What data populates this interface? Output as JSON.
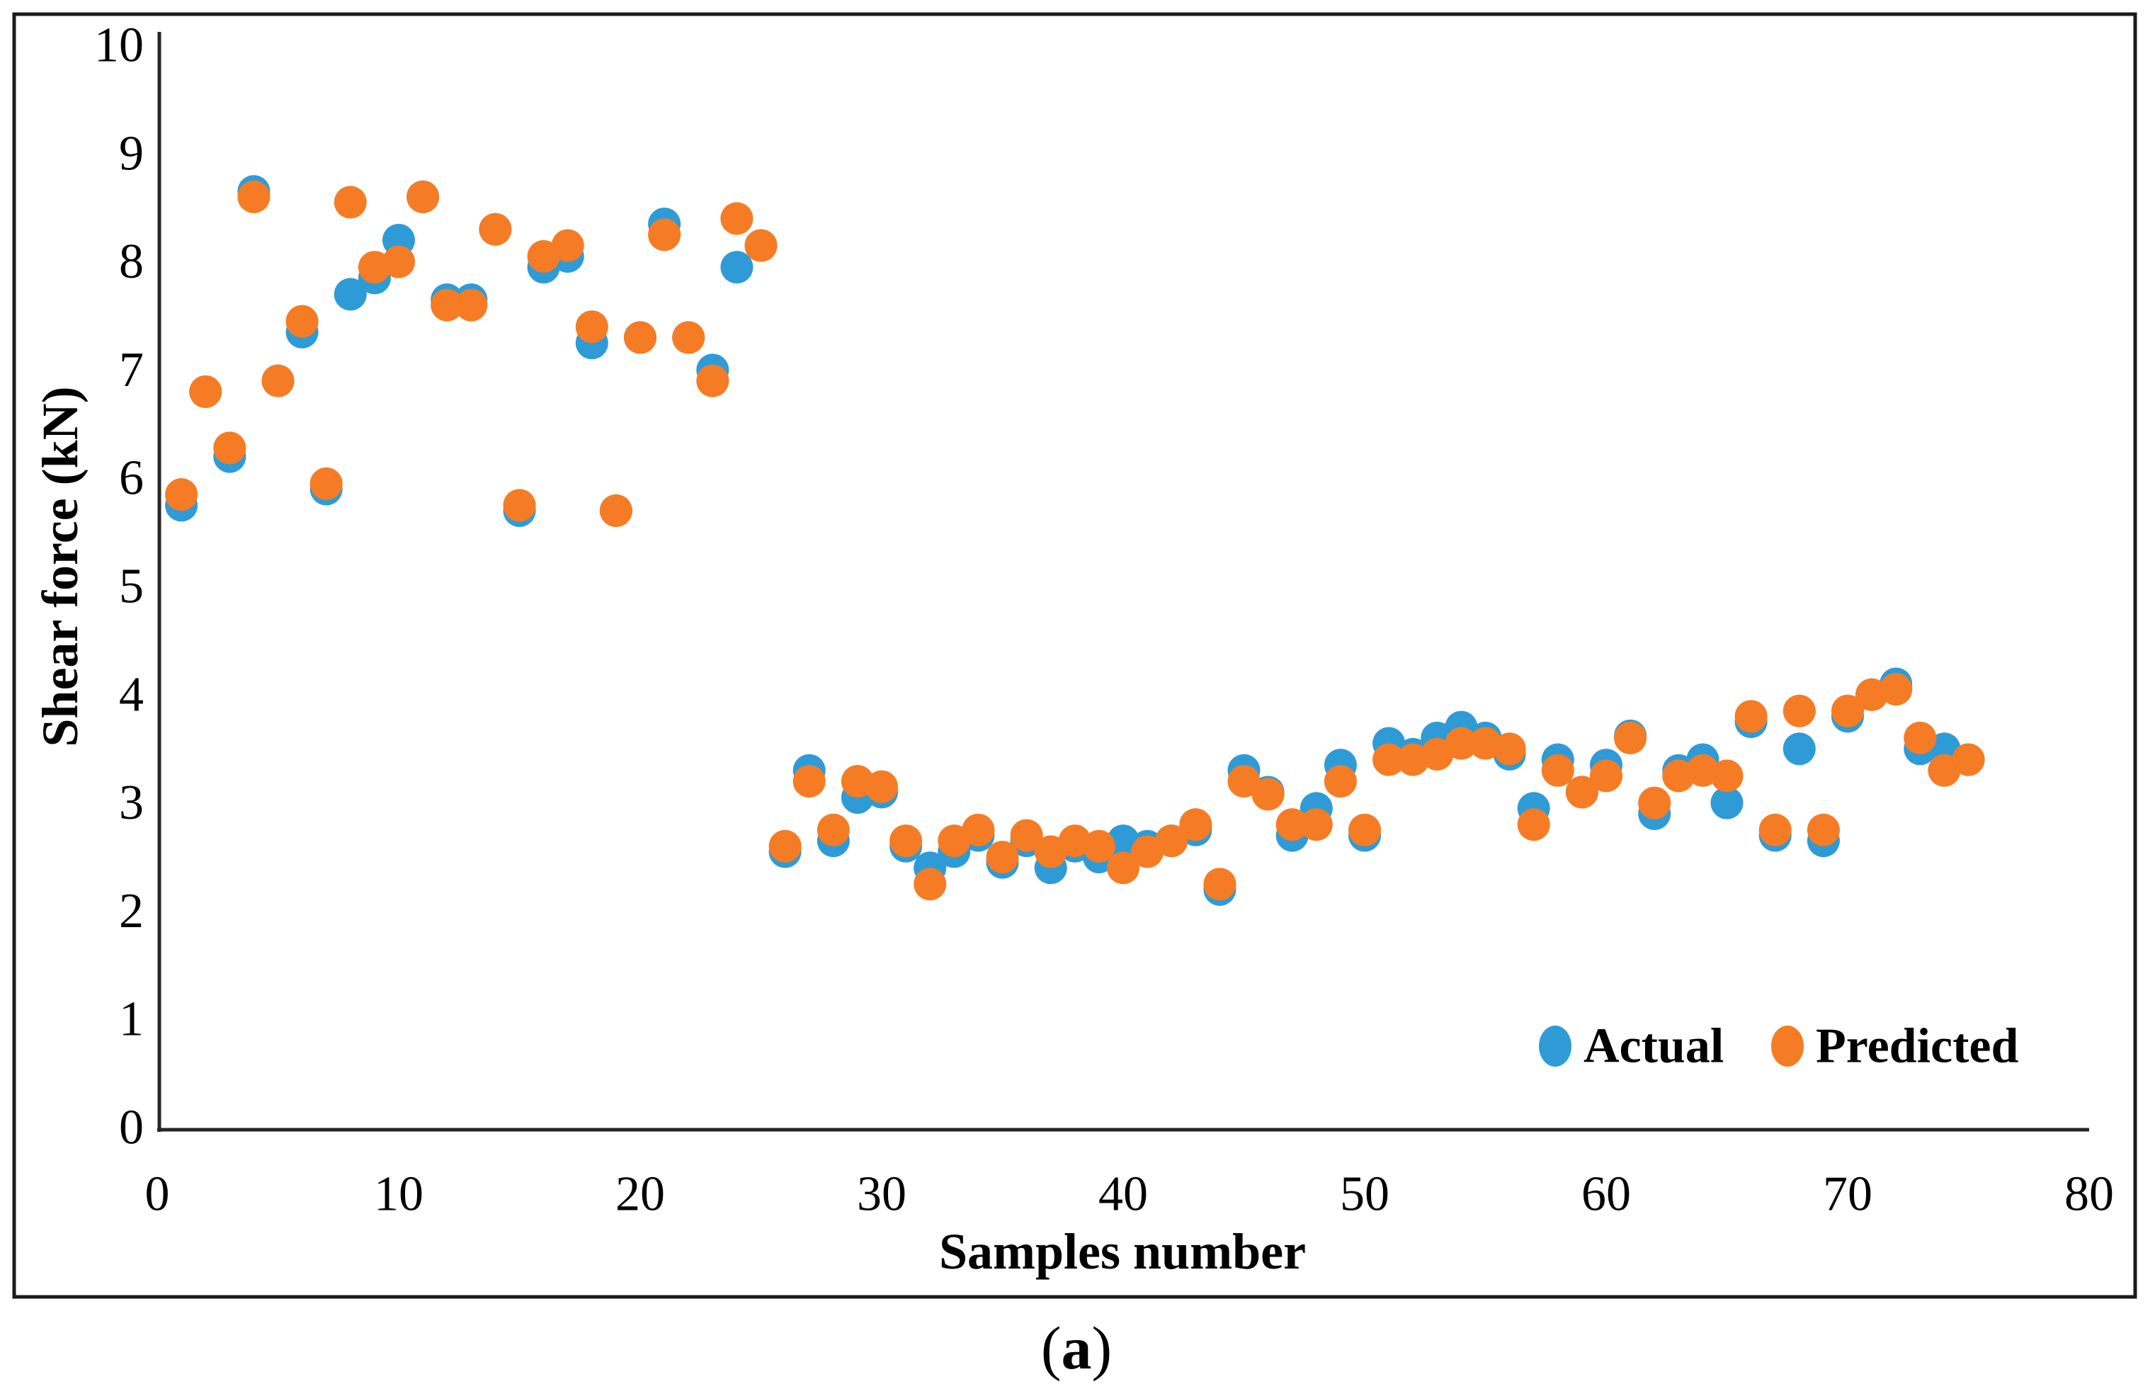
{
  "caption": {
    "open": "(",
    "letter": "a",
    "close": ")"
  },
  "chart_data": {
    "type": "scatter",
    "title": "",
    "xlabel": "Samples number",
    "ylabel": "Shear force (kN)",
    "xlim": [
      0,
      80
    ],
    "ylim": [
      0,
      10
    ],
    "x_ticks": [
      0,
      10,
      20,
      30,
      40,
      50,
      60,
      70,
      80
    ],
    "y_ticks": [
      0,
      1,
      2,
      3,
      4,
      5,
      6,
      7,
      8,
      9,
      10
    ],
    "grid": false,
    "legend_position": "inside lower right",
    "marker": "circle",
    "x": [
      1,
      2,
      3,
      4,
      5,
      6,
      7,
      8,
      9,
      10,
      11,
      12,
      13,
      14,
      15,
      16,
      17,
      18,
      19,
      20,
      21,
      22,
      23,
      24,
      25,
      26,
      27,
      28,
      29,
      30,
      31,
      32,
      33,
      34,
      35,
      36,
      37,
      38,
      39,
      40,
      41,
      42,
      43,
      44,
      45,
      46,
      47,
      48,
      49,
      50,
      51,
      52,
      53,
      54,
      55,
      56,
      57,
      58,
      59,
      60,
      61,
      62,
      63,
      64,
      65,
      66,
      67,
      68,
      69,
      70,
      71,
      72,
      73,
      74,
      75
    ],
    "series": [
      {
        "name": "Actual",
        "color": "#2E9BD7",
        "values": [
          5.75,
          6.8,
          6.2,
          8.65,
          6.9,
          7.35,
          5.9,
          7.7,
          7.85,
          8.2,
          8.6,
          7.65,
          7.65,
          8.3,
          5.7,
          7.95,
          8.05,
          7.25,
          5.7,
          7.3,
          8.35,
          7.3,
          7.0,
          7.95,
          8.15,
          2.55,
          3.3,
          2.65,
          3.05,
          3.1,
          2.6,
          2.4,
          2.55,
          2.7,
          2.45,
          2.65,
          2.4,
          2.6,
          2.5,
          2.65,
          2.6,
          2.65,
          2.75,
          2.2,
          3.3,
          3.1,
          2.7,
          2.95,
          3.35,
          2.7,
          3.55,
          3.45,
          3.6,
          3.7,
          3.6,
          3.45,
          2.95,
          3.4,
          3.1,
          3.35,
          3.62,
          2.9,
          3.3,
          3.4,
          3.0,
          3.75,
          2.7,
          3.5,
          2.65,
          3.8,
          4.0,
          4.1,
          3.5,
          3.5,
          3.4
        ]
      },
      {
        "name": "Predicted",
        "color": "#F57C24",
        "values": [
          5.85,
          6.8,
          6.28,
          8.6,
          6.9,
          7.45,
          5.95,
          8.55,
          7.95,
          8.0,
          8.6,
          7.6,
          7.6,
          8.3,
          5.75,
          8.05,
          8.15,
          7.4,
          5.7,
          7.3,
          8.25,
          7.3,
          6.9,
          8.4,
          8.15,
          2.6,
          3.2,
          2.75,
          3.2,
          3.15,
          2.65,
          2.25,
          2.65,
          2.75,
          2.5,
          2.7,
          2.55,
          2.65,
          2.6,
          2.4,
          2.55,
          2.65,
          2.8,
          2.25,
          3.2,
          3.08,
          2.8,
          2.8,
          3.2,
          2.75,
          3.4,
          3.4,
          3.45,
          3.55,
          3.55,
          3.5,
          2.8,
          3.3,
          3.1,
          3.25,
          3.6,
          3.0,
          3.25,
          3.3,
          3.25,
          3.8,
          2.75,
          3.85,
          2.75,
          3.85,
          4.0,
          4.05,
          3.6,
          3.3,
          3.4
        ]
      }
    ]
  }
}
